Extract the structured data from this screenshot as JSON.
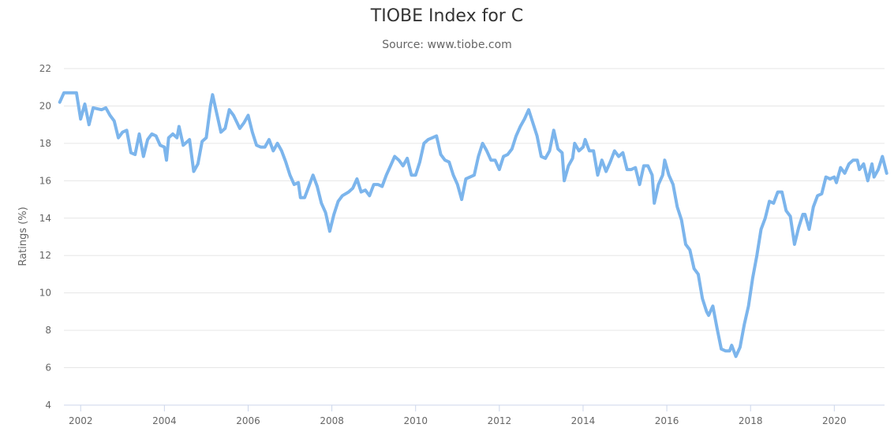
{
  "chart_data": {
    "type": "line",
    "title": "TIOBE Index for C",
    "subtitle": "Source: www.tiobe.com",
    "xlabel": "",
    "ylabel": "Ratings (%)",
    "ylim": [
      4,
      22
    ],
    "xlim": [
      2001.6,
      2021.2
    ],
    "x_ticks": [
      2002,
      2004,
      2006,
      2008,
      2010,
      2012,
      2014,
      2016,
      2018,
      2020
    ],
    "y_ticks": [
      4,
      6,
      8,
      10,
      12,
      14,
      16,
      18,
      20,
      22
    ],
    "grid": true,
    "legend": "none",
    "series": [
      {
        "color": "#7cb5ec",
        "points": [
          [
            2001.5,
            20.2
          ],
          [
            2001.6,
            20.7
          ],
          [
            2001.8,
            20.7
          ],
          [
            2001.9,
            20.7
          ],
          [
            2002.0,
            19.3
          ],
          [
            2002.1,
            20.1
          ],
          [
            2002.2,
            19.0
          ],
          [
            2002.3,
            19.9
          ],
          [
            2002.5,
            19.8
          ],
          [
            2002.6,
            19.9
          ],
          [
            2002.7,
            19.5
          ],
          [
            2002.8,
            19.2
          ],
          [
            2002.9,
            18.3
          ],
          [
            2003.0,
            18.6
          ],
          [
            2003.1,
            18.7
          ],
          [
            2003.2,
            17.5
          ],
          [
            2003.3,
            17.4
          ],
          [
            2003.4,
            18.5
          ],
          [
            2003.5,
            17.3
          ],
          [
            2003.6,
            18.2
          ],
          [
            2003.7,
            18.5
          ],
          [
            2003.8,
            18.4
          ],
          [
            2003.9,
            17.9
          ],
          [
            2004.0,
            17.8
          ],
          [
            2004.05,
            17.1
          ],
          [
            2004.1,
            18.3
          ],
          [
            2004.2,
            18.5
          ],
          [
            2004.3,
            18.3
          ],
          [
            2004.35,
            18.9
          ],
          [
            2004.45,
            17.9
          ],
          [
            2004.6,
            18.2
          ],
          [
            2004.7,
            16.5
          ],
          [
            2004.8,
            16.9
          ],
          [
            2004.9,
            18.1
          ],
          [
            2005.0,
            18.3
          ],
          [
            2005.1,
            20.0
          ],
          [
            2005.15,
            20.6
          ],
          [
            2005.25,
            19.6
          ],
          [
            2005.35,
            18.6
          ],
          [
            2005.45,
            18.8
          ],
          [
            2005.55,
            19.8
          ],
          [
            2005.65,
            19.5
          ],
          [
            2005.8,
            18.8
          ],
          [
            2005.9,
            19.1
          ],
          [
            2006.0,
            19.5
          ],
          [
            2006.1,
            18.6
          ],
          [
            2006.2,
            17.9
          ],
          [
            2006.3,
            17.8
          ],
          [
            2006.4,
            17.8
          ],
          [
            2006.5,
            18.2
          ],
          [
            2006.6,
            17.6
          ],
          [
            2006.7,
            18.0
          ],
          [
            2006.8,
            17.6
          ],
          [
            2006.9,
            17.0
          ],
          [
            2007.0,
            16.3
          ],
          [
            2007.1,
            15.8
          ],
          [
            2007.2,
            15.9
          ],
          [
            2007.25,
            15.1
          ],
          [
            2007.35,
            15.1
          ],
          [
            2007.45,
            15.7
          ],
          [
            2007.55,
            16.3
          ],
          [
            2007.65,
            15.7
          ],
          [
            2007.75,
            14.8
          ],
          [
            2007.85,
            14.3
          ],
          [
            2007.95,
            13.3
          ],
          [
            2008.05,
            14.2
          ],
          [
            2008.15,
            14.9
          ],
          [
            2008.25,
            15.2
          ],
          [
            2008.4,
            15.4
          ],
          [
            2008.5,
            15.6
          ],
          [
            2008.6,
            16.1
          ],
          [
            2008.7,
            15.4
          ],
          [
            2008.8,
            15.5
          ],
          [
            2008.9,
            15.2
          ],
          [
            2009.0,
            15.8
          ],
          [
            2009.1,
            15.8
          ],
          [
            2009.2,
            15.7
          ],
          [
            2009.3,
            16.3
          ],
          [
            2009.4,
            16.8
          ],
          [
            2009.5,
            17.3
          ],
          [
            2009.6,
            17.1
          ],
          [
            2009.7,
            16.8
          ],
          [
            2009.8,
            17.2
          ],
          [
            2009.9,
            16.3
          ],
          [
            2010.0,
            16.3
          ],
          [
            2010.1,
            17.0
          ],
          [
            2010.2,
            18.0
          ],
          [
            2010.3,
            18.2
          ],
          [
            2010.4,
            18.3
          ],
          [
            2010.5,
            18.4
          ],
          [
            2010.6,
            17.4
          ],
          [
            2010.7,
            17.1
          ],
          [
            2010.8,
            17.0
          ],
          [
            2010.9,
            16.3
          ],
          [
            2011.0,
            15.8
          ],
          [
            2011.1,
            15.0
          ],
          [
            2011.2,
            16.1
          ],
          [
            2011.3,
            16.2
          ],
          [
            2011.4,
            16.3
          ],
          [
            2011.5,
            17.3
          ],
          [
            2011.6,
            18.0
          ],
          [
            2011.7,
            17.6
          ],
          [
            2011.8,
            17.1
          ],
          [
            2011.9,
            17.1
          ],
          [
            2012.0,
            16.6
          ],
          [
            2012.1,
            17.3
          ],
          [
            2012.2,
            17.4
          ],
          [
            2012.3,
            17.7
          ],
          [
            2012.4,
            18.4
          ],
          [
            2012.5,
            18.9
          ],
          [
            2012.6,
            19.3
          ],
          [
            2012.7,
            19.8
          ],
          [
            2012.8,
            19.1
          ],
          [
            2012.9,
            18.4
          ],
          [
            2013.0,
            17.3
          ],
          [
            2013.1,
            17.2
          ],
          [
            2013.2,
            17.6
          ],
          [
            2013.3,
            18.7
          ],
          [
            2013.4,
            17.7
          ],
          [
            2013.5,
            17.5
          ],
          [
            2013.55,
            16.0
          ],
          [
            2013.65,
            16.8
          ],
          [
            2013.75,
            17.2
          ],
          [
            2013.8,
            18.0
          ],
          [
            2013.9,
            17.6
          ],
          [
            2014.0,
            17.8
          ],
          [
            2014.05,
            18.2
          ],
          [
            2014.15,
            17.6
          ],
          [
            2014.25,
            17.6
          ],
          [
            2014.35,
            16.3
          ],
          [
            2014.45,
            17.1
          ],
          [
            2014.55,
            16.5
          ],
          [
            2014.65,
            17.0
          ],
          [
            2014.75,
            17.6
          ],
          [
            2014.85,
            17.3
          ],
          [
            2014.95,
            17.5
          ],
          [
            2015.05,
            16.6
          ],
          [
            2015.15,
            16.6
          ],
          [
            2015.25,
            16.7
          ],
          [
            2015.35,
            15.8
          ],
          [
            2015.45,
            16.8
          ],
          [
            2015.55,
            16.8
          ],
          [
            2015.65,
            16.3
          ],
          [
            2015.7,
            14.8
          ],
          [
            2015.8,
            15.8
          ],
          [
            2015.9,
            16.3
          ],
          [
            2015.95,
            17.1
          ],
          [
            2016.05,
            16.3
          ],
          [
            2016.15,
            15.8
          ],
          [
            2016.25,
            14.6
          ],
          [
            2016.35,
            13.9
          ],
          [
            2016.45,
            12.6
          ],
          [
            2016.55,
            12.3
          ],
          [
            2016.65,
            11.3
          ],
          [
            2016.75,
            11.0
          ],
          [
            2016.85,
            9.7
          ],
          [
            2016.95,
            9.0
          ],
          [
            2017.0,
            8.8
          ],
          [
            2017.1,
            9.3
          ],
          [
            2017.2,
            8.1
          ],
          [
            2017.3,
            7.0
          ],
          [
            2017.4,
            6.9
          ],
          [
            2017.5,
            6.9
          ],
          [
            2017.55,
            7.2
          ],
          [
            2017.65,
            6.6
          ],
          [
            2017.75,
            7.1
          ],
          [
            2017.85,
            8.3
          ],
          [
            2017.95,
            9.3
          ],
          [
            2018.05,
            10.8
          ],
          [
            2018.15,
            12.0
          ],
          [
            2018.25,
            13.4
          ],
          [
            2018.35,
            14.0
          ],
          [
            2018.45,
            14.9
          ],
          [
            2018.55,
            14.8
          ],
          [
            2018.65,
            15.4
          ],
          [
            2018.75,
            15.4
          ],
          [
            2018.85,
            14.4
          ],
          [
            2018.95,
            14.1
          ],
          [
            2019.05,
            12.6
          ],
          [
            2019.15,
            13.5
          ],
          [
            2019.25,
            14.2
          ],
          [
            2019.3,
            14.2
          ],
          [
            2019.4,
            13.4
          ],
          [
            2019.5,
            14.6
          ],
          [
            2019.6,
            15.2
          ],
          [
            2019.7,
            15.3
          ],
          [
            2019.8,
            16.2
          ],
          [
            2019.9,
            16.1
          ],
          [
            2020.0,
            16.2
          ],
          [
            2020.05,
            15.9
          ],
          [
            2020.15,
            16.7
          ],
          [
            2020.25,
            16.4
          ],
          [
            2020.35,
            16.9
          ],
          [
            2020.45,
            17.1
          ],
          [
            2020.55,
            17.1
          ],
          [
            2020.6,
            16.6
          ],
          [
            2020.7,
            16.9
          ],
          [
            2020.8,
            16.0
          ],
          [
            2020.9,
            16.9
          ],
          [
            2020.95,
            16.2
          ],
          [
            2021.05,
            16.6
          ],
          [
            2021.15,
            17.3
          ],
          [
            2021.25,
            16.4
          ]
        ]
      }
    ]
  }
}
